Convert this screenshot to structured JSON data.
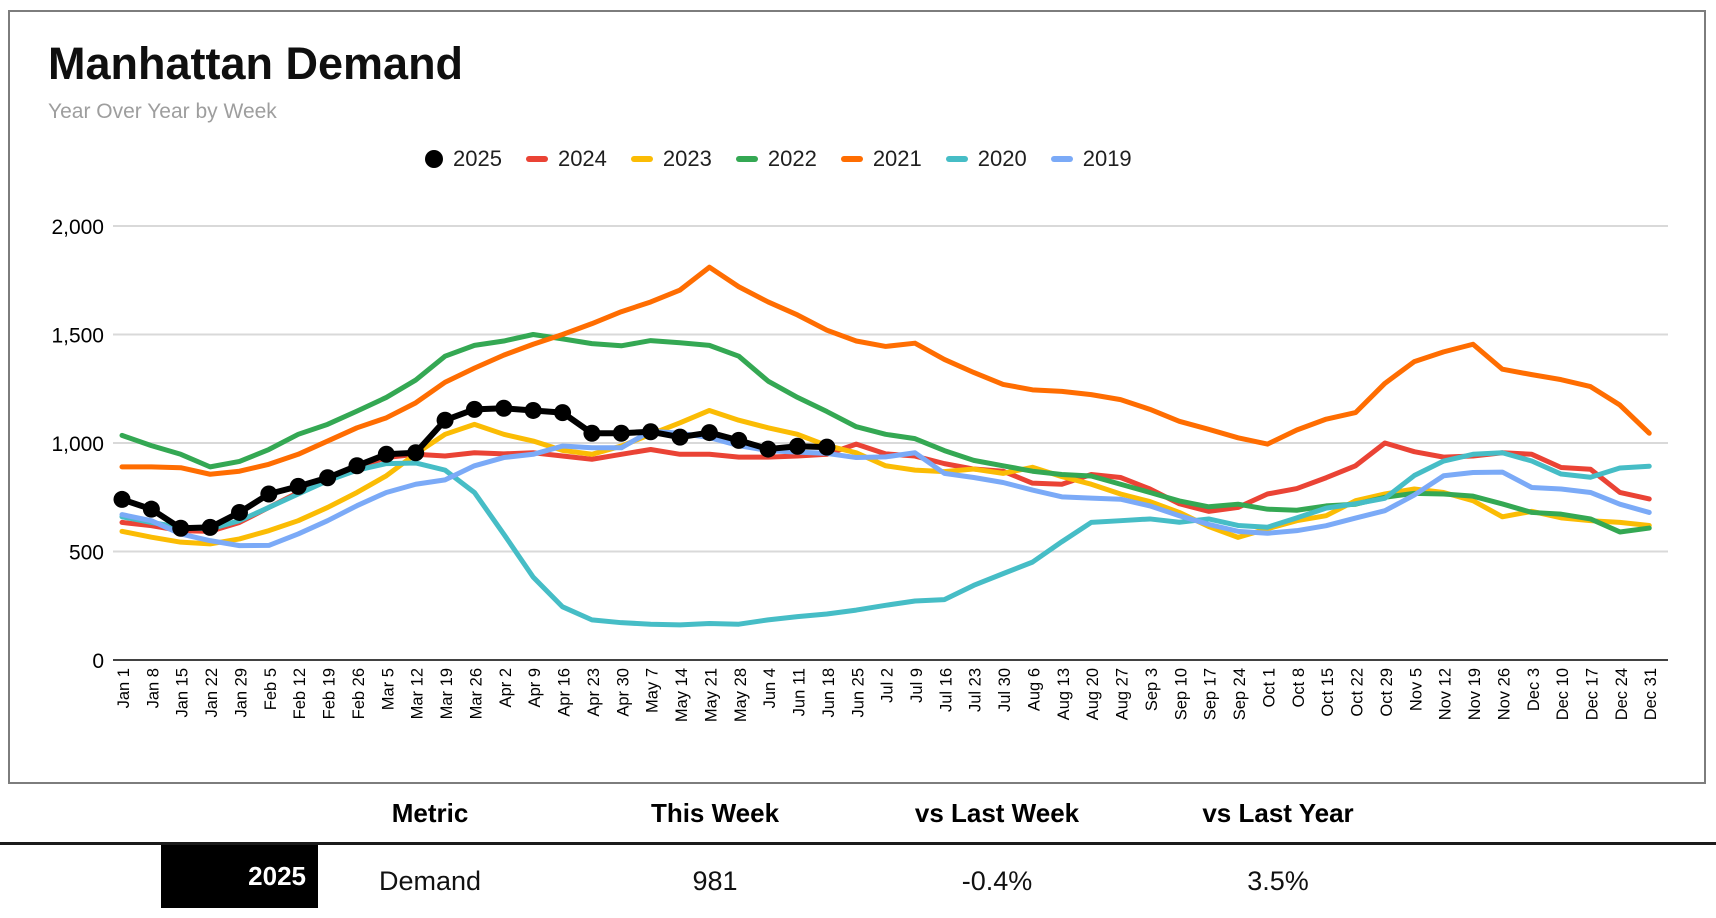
{
  "card": {
    "title": "Manhattan Demand",
    "subtitle": "Year Over Year by Week"
  },
  "chart_data": {
    "type": "line",
    "title": "Manhattan Demand",
    "subtitle": "Year Over Year by Week",
    "legend_position": "top",
    "grid": true,
    "ylim": [
      0,
      2100
    ],
    "xlabel": "",
    "ylabel": "",
    "y_ticks": [
      0,
      500,
      1000,
      1500,
      2000
    ],
    "y_tick_labels": [
      "0",
      "500",
      "1,000",
      "1,500",
      "2,000"
    ],
    "x_labels": [
      "Jan 1",
      "Jan 8",
      "Jan 15",
      "Jan 22",
      "Jan 29",
      "Feb 5",
      "Feb 12",
      "Feb 19",
      "Feb 26",
      "Mar 5",
      "Mar 12",
      "Mar 19",
      "Mar 26",
      "Apr 2",
      "Apr 9",
      "Apr 16",
      "Apr 23",
      "Apr 30",
      "May 7",
      "May 14",
      "May 21",
      "May 28",
      "Jun 4",
      "Jun 11",
      "Jun 18",
      "Jun 25",
      "Jul 2",
      "Jul 9",
      "Jul 16",
      "Jul 23",
      "Jul 30",
      "Aug 6",
      "Aug 13",
      "Aug 20",
      "Aug 27",
      "Sep 3",
      "Sep 10",
      "Sep 17",
      "Sep 24",
      "Oct 1",
      "Oct 8",
      "Oct 15",
      "Oct 22",
      "Oct 29",
      "Nov 5",
      "Nov 12",
      "Nov 19",
      "Nov 26",
      "Dec 3",
      "Dec 10",
      "Dec 17",
      "Dec 24",
      "Dec 31"
    ],
    "series": [
      {
        "name": "2025",
        "color": "#000000",
        "marker": "circle",
        "values": [
          740,
          695,
          607,
          611,
          680,
          765,
          800,
          840,
          895,
          948,
          955,
          1105,
          1155,
          1160,
          1150,
          1140,
          1045,
          1045,
          1052,
          1027,
          1048,
          1012,
          972,
          985,
          981
        ]
      },
      {
        "name": "2024",
        "color": "#EA4335",
        "marker": "line",
        "values": [
          634,
          619,
          596,
          593,
          634,
          703,
          772,
          841,
          887,
          933,
          948,
          940,
          955,
          950,
          955,
          940,
          925,
          948,
          970,
          948,
          948,
          935,
          935,
          940,
          948,
          995,
          950,
          940,
          905,
          880,
          870,
          815,
          810,
          855,
          841,
          788,
          720,
          685,
          703,
          765,
          790,
          840,
          895,
          1000,
          960,
          935,
          940,
          955,
          948,
          887,
          879,
          772,
          742
        ]
      },
      {
        "name": "2023",
        "color": "#FBBC04",
        "marker": "line",
        "values": [
          593,
          566,
          543,
          535,
          558,
          596,
          642,
          703,
          772,
          849,
          950,
          1040,
          1086,
          1040,
          1009,
          966,
          948,
          986,
          1040,
          1093,
          1150,
          1105,
          1070,
          1040,
          988,
          955,
          895,
          875,
          868,
          880,
          860,
          888,
          845,
          810,
          765,
          730,
          680,
          615,
          565,
          605,
          642,
          665,
          734,
          765,
          788,
          772,
          734,
          660,
          685,
          655,
          642,
          634,
          620
        ]
      },
      {
        "name": "2022",
        "color": "#34A853",
        "marker": "line",
        "values": [
          1035,
          988,
          948,
          890,
          915,
          970,
          1040,
          1086,
          1147,
          1210,
          1290,
          1400,
          1450,
          1470,
          1500,
          1480,
          1458,
          1448,
          1472,
          1462,
          1450,
          1400,
          1285,
          1210,
          1145,
          1075,
          1040,
          1020,
          965,
          920,
          895,
          870,
          855,
          848,
          810,
          772,
          733,
          706,
          718,
          695,
          690,
          710,
          718,
          750,
          768,
          765,
          755,
          719,
          680,
          672,
          650,
          590,
          608
        ]
      },
      {
        "name": "2021",
        "color": "#FF6D01",
        "marker": "line",
        "values": [
          890,
          890,
          886,
          856,
          870,
          902,
          948,
          1009,
          1070,
          1116,
          1185,
          1280,
          1345,
          1405,
          1455,
          1500,
          1550,
          1605,
          1650,
          1705,
          1810,
          1720,
          1650,
          1590,
          1520,
          1470,
          1445,
          1460,
          1385,
          1325,
          1270,
          1245,
          1238,
          1223,
          1200,
          1155,
          1100,
          1063,
          1024,
          995,
          1060,
          1110,
          1140,
          1275,
          1375,
          1420,
          1455,
          1340,
          1315,
          1292,
          1260,
          1175,
          1045
        ]
      },
      {
        "name": "2020",
        "color": "#46BDC6",
        "marker": "line",
        "values": [
          660,
          634,
          611,
          604,
          642,
          703,
          765,
          826,
          875,
          905,
          908,
          875,
          772,
          580,
          382,
          245,
          185,
          172,
          165,
          162,
          168,
          165,
          185,
          200,
          212,
          230,
          252,
          272,
          278,
          344,
          398,
          451,
          545,
          634,
          642,
          650,
          635,
          650,
          620,
          612,
          655,
          700,
          720,
          745,
          850,
          917,
          948,
          955,
          917,
          857,
          842,
          885,
          893
        ]
      },
      {
        "name": "2019",
        "color": "#7BAAF7",
        "marker": "line",
        "values": [
          670,
          642,
          581,
          550,
          527,
          528,
          581,
          642,
          711,
          772,
          810,
          830,
          895,
          933,
          948,
          986,
          978,
          978,
          1055,
          1045,
          1025,
          988,
          965,
          958,
          952,
          933,
          936,
          955,
          860,
          841,
          818,
          783,
          752,
          746,
          741,
          710,
          665,
          625,
          593,
          584,
          596,
          619,
          654,
          688,
          760,
          849,
          864,
          866,
          795,
          788,
          772,
          718,
          680
        ]
      }
    ]
  },
  "table": {
    "headers": [
      "Metric",
      "This Week",
      "vs Last Week",
      "vs Last Year"
    ],
    "row": {
      "year": "2025",
      "metric": "Demand",
      "this_week": "981",
      "vs_last_week": "-0.4%",
      "vs_last_year": "3.5%"
    }
  }
}
